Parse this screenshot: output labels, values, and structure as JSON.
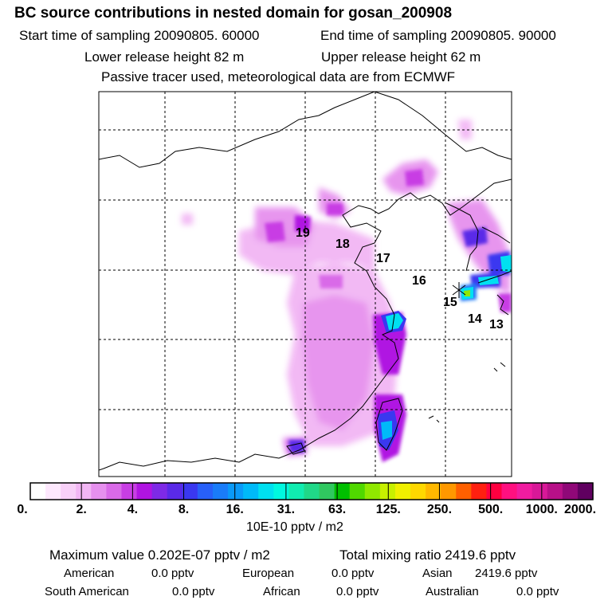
{
  "header": {
    "title": "BC  source contributions in nested domain for gosan_200908",
    "start_time": "Start time of sampling 20090805. 60000",
    "end_time": "End time of sampling 20090805. 90000",
    "lower_height": "Lower release height   82 m",
    "upper_height": "Upper release height   62 m",
    "tracer_note": "Passive tracer used, meteorological data are from ECMWF"
  },
  "map": {
    "trajectory_labels": [
      "19",
      "18",
      "17",
      "16",
      "15",
      "14",
      "13"
    ]
  },
  "colorbar": {
    "tick_labels": [
      "0.",
      "2.",
      "4.",
      "8.",
      "16.",
      "31.",
      "63.",
      "125.",
      "250.",
      "500.",
      "1000.",
      "2000."
    ],
    "unit": "10E-10 pptv / m2",
    "colors": [
      "#ffffff",
      "#fde8fd",
      "#f8d0f8",
      "#f2b6f4",
      "#e690ee",
      "#d96ae8",
      "#c83ee4",
      "#b014e2",
      "#7e2ae6",
      "#5a2ae8",
      "#3a38f0",
      "#2860f8",
      "#1a7cf8",
      "#0a9af8",
      "#00baf8",
      "#00e0f0",
      "#00f8e0",
      "#10ecb0",
      "#20d888",
      "#30c860",
      "#00c000",
      "#50d800",
      "#90e800",
      "#c8f000",
      "#f0f000",
      "#ffd800",
      "#ffb800",
      "#ff9800",
      "#ff6000",
      "#ff2010",
      "#ff0040",
      "#ff1080",
      "#f01ca0",
      "#d81898",
      "#b81088",
      "#900878",
      "#600060"
    ]
  },
  "summary": {
    "max_label": "Maximum value  0.202E-07 pptv / m2",
    "total_label": "Total mixing ratio     2419.6 pptv",
    "regions": [
      {
        "name": "American",
        "value": "0.0 pptv"
      },
      {
        "name": "European",
        "value": "0.0 pptv"
      },
      {
        "name": "Asian",
        "value": "2419.6 pptv"
      },
      {
        "name": "South American",
        "value": "0.0 pptv"
      },
      {
        "name": "African",
        "value": "0.0 pptv"
      },
      {
        "name": "Australian",
        "value": "0.0 pptv"
      }
    ]
  }
}
